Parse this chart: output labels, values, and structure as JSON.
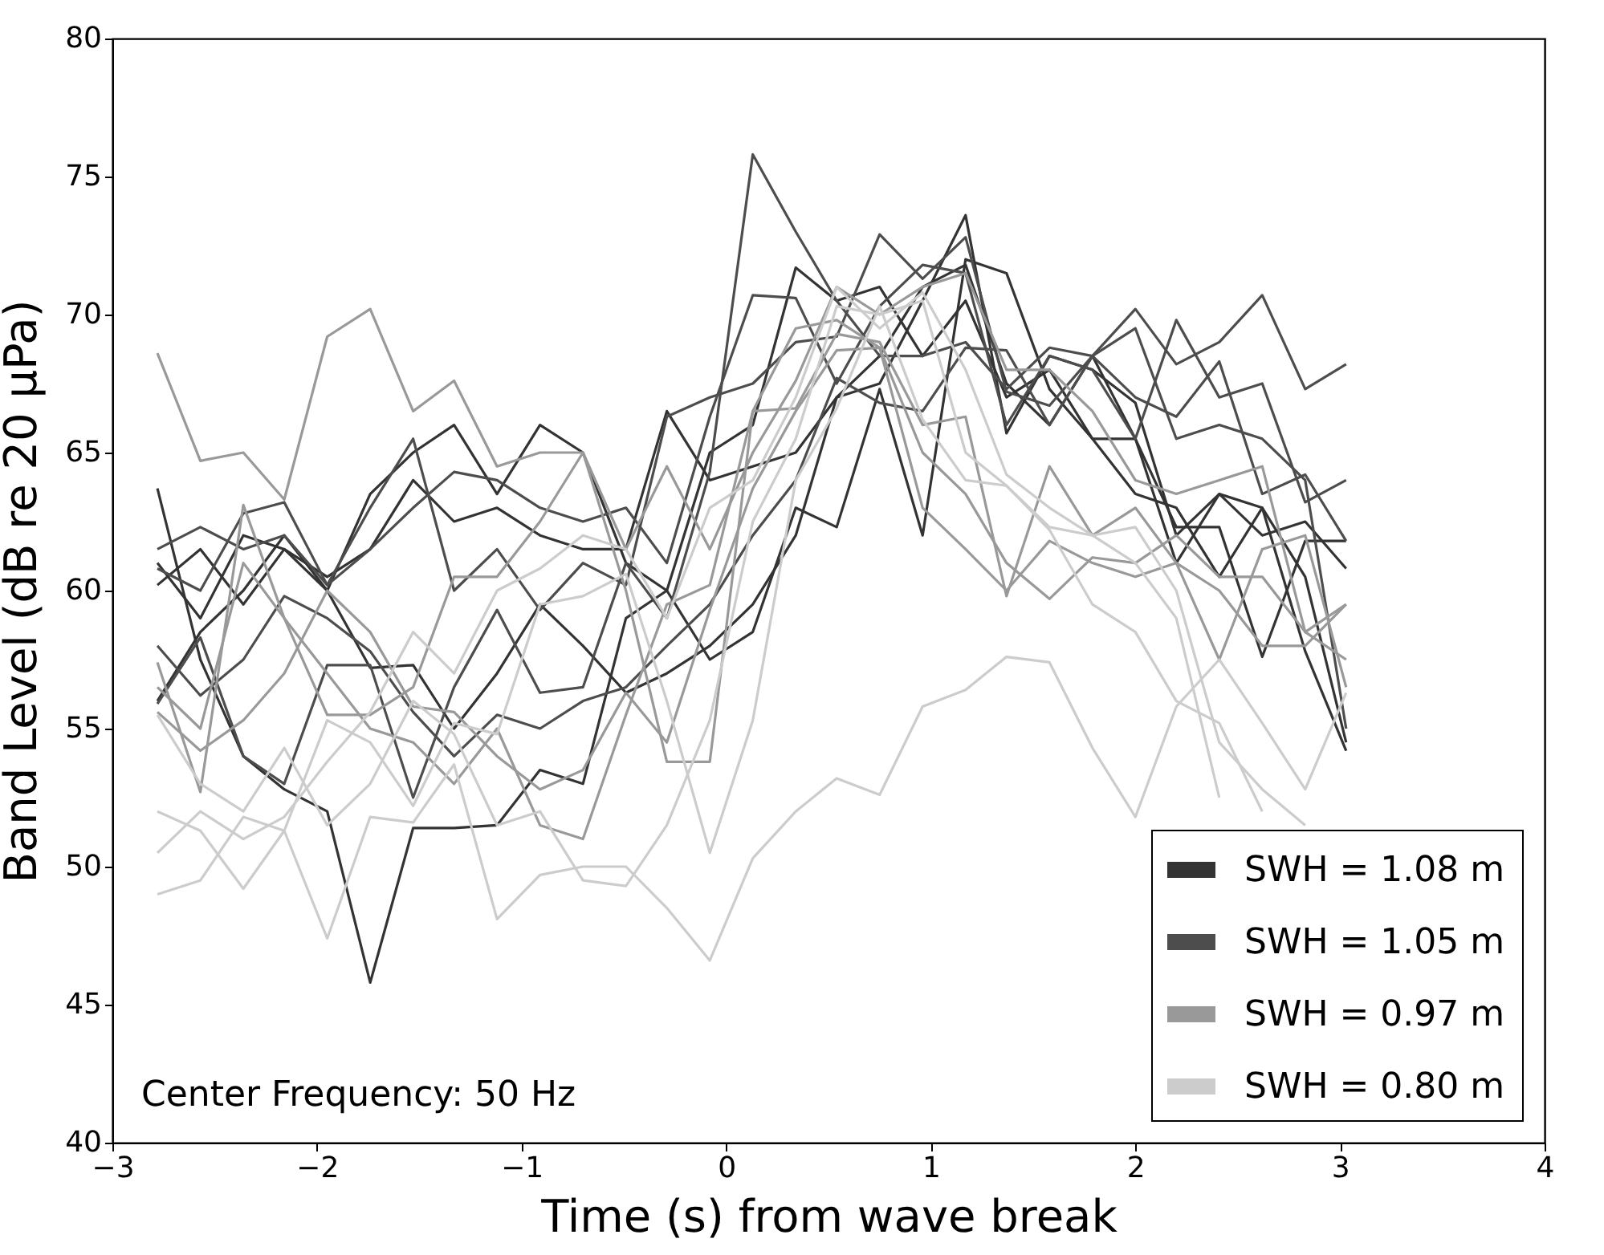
{
  "chart_data": {
    "type": "line",
    "xlabel": "Time (s) from wave break",
    "ylabel": "Band Level (dB re 20 μPa)",
    "annotations": [
      "Center Frequency: 50 Hz"
    ],
    "x": [
      -2.78,
      -2.57,
      -2.36,
      -2.16,
      -1.95,
      -1.74,
      -1.53,
      -1.33,
      -1.12,
      -0.91,
      -0.7,
      -0.49,
      -0.29,
      -0.08,
      0.13,
      0.34,
      0.54,
      0.75,
      0.96,
      1.17,
      1.37,
      1.58,
      1.79,
      2.0,
      2.2,
      2.41,
      2.62,
      2.83,
      3.03
    ],
    "xlim": [
      -3,
      4
    ],
    "xticks": [
      {
        "value": -3,
        "label": "−3"
      },
      {
        "value": -2,
        "label": "−2"
      },
      {
        "value": -1,
        "label": "−1"
      },
      0,
      1,
      2,
      3,
      4
    ],
    "ylim": [
      40,
      80
    ],
    "yticks": [
      40,
      45,
      50,
      55,
      60,
      65,
      70,
      75,
      80
    ],
    "legend": "bottom right",
    "line_style": "solid",
    "series": [
      {
        "name": "SWH = 1.08 m",
        "color": "#333333",
        "values": [
          56,
          58.5,
          60,
          62,
          60,
          57.2,
          57.3,
          55,
          57,
          59.5,
          58,
          56.3,
          57,
          58,
          59.5,
          62,
          67,
          68.5,
          71,
          71.8,
          67.5,
          66,
          68.5,
          65.5,
          61,
          63.5,
          63,
          57.8,
          54.2
        ]
      },
      {
        "color": "#333333",
        "values": [
          61,
          59,
          62,
          61.5,
          60,
          63.5,
          65,
          66,
          63.5,
          66,
          65,
          61,
          60,
          65,
          66,
          71.7,
          70.5,
          71,
          68.5,
          70.5,
          67,
          68,
          65.5,
          63.5,
          63,
          60.5,
          63,
          60.5,
          54.5
        ]
      },
      {
        "color": "#333333",
        "values": [
          60.2,
          61.5,
          59.5,
          61.5,
          60.5,
          61.5,
          64,
          62.5,
          63,
          62,
          61.5,
          61.5,
          66.5,
          64,
          64.5,
          65,
          67,
          67.5,
          70.5,
          73.6,
          65.7,
          68.5,
          68,
          66.8,
          62,
          63.5,
          62,
          62.5,
          60.8
        ]
      },
      {
        "color": "#333333",
        "values": [
          63.7,
          57.5,
          54,
          52.8,
          52,
          45.8,
          51.4,
          51.4,
          51.5,
          53.5,
          53,
          59,
          60,
          57.5,
          58.5,
          63,
          62.3,
          67.3,
          62,
          72,
          71.5,
          67.3,
          65.5,
          65.5,
          62.3,
          62.3,
          57.6,
          61.8,
          61.8
        ]
      },
      {
        "name": "SWH = 1.05 m",
        "color": "#4d4d4d",
        "values": [
          55.9,
          58.3,
          54,
          53,
          57.3,
          57.3,
          52.5,
          56.5,
          59.3,
          56.3,
          56.5,
          61,
          59,
          64.3,
          75.8,
          73,
          70.5,
          68.5,
          68.5,
          69,
          67.3,
          68.8,
          68.5,
          70.2,
          68.2,
          69,
          70.7,
          67.3,
          68.2
        ]
      },
      {
        "color": "#4d4d4d",
        "values": [
          60.8,
          60,
          62.8,
          63.2,
          60.2,
          61.5,
          63,
          64.3,
          64,
          63,
          62.5,
          63,
          61,
          66.3,
          70.7,
          70.6,
          67.5,
          70.3,
          71.8,
          71.5,
          66,
          68.5,
          68,
          65.5,
          69.8,
          67,
          67.5,
          63.2,
          64
        ]
      },
      {
        "color": "#4d4d4d",
        "values": [
          61.5,
          62.3,
          61.5,
          62,
          60.2,
          63,
          65.5,
          60,
          61.5,
          59.3,
          61,
          60.2,
          66.3,
          67,
          67.5,
          69,
          69.2,
          72.9,
          71.3,
          72.8,
          67.2,
          66.7,
          68.5,
          67,
          66.3,
          68.3,
          63.5,
          64.2,
          61.8
        ]
      },
      {
        "color": "#4d4d4d",
        "values": [
          58,
          56.2,
          57.5,
          59.8,
          59,
          57.8,
          55.6,
          54,
          55.5,
          55,
          56,
          56.5,
          58,
          59.5,
          62,
          64,
          67.7,
          66.8,
          66.5,
          68.8,
          68.7,
          66,
          68.5,
          69.5,
          65.5,
          66,
          65.5,
          64,
          55
        ]
      },
      {
        "name": "SWH = 0.97 m",
        "color": "#999999",
        "values": [
          68.6,
          64.7,
          65,
          63.3,
          69.2,
          70.2,
          66.5,
          67.6,
          64.5,
          65,
          65,
          61.5,
          64.5,
          61.5,
          65,
          67.6,
          71,
          70,
          71,
          71.5,
          68,
          68,
          66.5,
          64,
          63.5,
          64,
          64.5,
          58.5,
          59.5
        ]
      },
      {
        "color": "#999999",
        "values": [
          57.4,
          52.7,
          63.1,
          59,
          55.5,
          55.5,
          56.5,
          60.5,
          60.5,
          62.5,
          65,
          60,
          53.8,
          53.8,
          66.5,
          66.6,
          69.3,
          69,
          66,
          66.3,
          59.8,
          64.5,
          62,
          63,
          61,
          57.5,
          61.5,
          62,
          56.5
        ]
      },
      {
        "color": "#999999",
        "values": [
          55.6,
          54.2,
          55.3,
          57,
          60,
          58.5,
          55.8,
          55.6,
          54,
          52.8,
          53.5,
          56.3,
          54.5,
          59.3,
          63.7,
          66.5,
          68.7,
          68.8,
          65,
          63.5,
          61,
          59.7,
          61.2,
          61,
          62,
          60.5,
          60.5,
          58.5,
          57.5
        ]
      },
      {
        "color": "#999999",
        "values": [
          56.5,
          55,
          61,
          59,
          57,
          55,
          54.5,
          53,
          55,
          51.5,
          51,
          55.5,
          59.5,
          60.2,
          66.5,
          69.5,
          69.8,
          68.8,
          63,
          61.5,
          60,
          61.8,
          61,
          60.5,
          61,
          60,
          58,
          58,
          59.5
        ]
      },
      {
        "name": "SWH = 0.80 m",
        "color": "#cccccc",
        "values": [
          49,
          49.5,
          51.8,
          51.3,
          47.4,
          51.8,
          51.6,
          53.7,
          48.1,
          49.7,
          50,
          50,
          48.5,
          46.6,
          50.3,
          52,
          53.2,
          52.6,
          55.8,
          56.4,
          57.6,
          57.4,
          54.3,
          51.8,
          55.8,
          57.5,
          55.2,
          52.8,
          56.3
        ]
      },
      {
        "color": "#cccccc",
        "values": [
          52,
          51.3,
          49.2,
          51.3,
          55.3,
          54.5,
          52.2,
          55.2,
          54.8,
          59.5,
          59.8,
          60.6,
          56,
          50.5,
          55.3,
          64,
          66.6,
          70.3,
          66.2,
          64,
          63.8,
          62.3,
          62,
          61,
          59,
          52.5,
          null,
          null,
          null
        ]
      },
      {
        "color": "#cccccc",
        "values": [
          50.5,
          52,
          51,
          51.8,
          53.8,
          55.6,
          58.5,
          57,
          60,
          60.8,
          62,
          61.5,
          59,
          63,
          64,
          67,
          71,
          69.5,
          70.8,
          68,
          64.2,
          63,
          62,
          62.3,
          60,
          54.5,
          52.8,
          51.5,
          null
        ]
      },
      {
        "color": "#cccccc",
        "values": [
          55.5,
          53,
          52,
          54.3,
          51.5,
          53,
          56,
          54.8,
          51.5,
          52,
          49.5,
          49.3,
          51.5,
          55.3,
          62.5,
          65.5,
          70.3,
          70,
          70.5,
          65,
          63.8,
          62.2,
          59.5,
          58.5,
          56,
          55.2,
          52,
          null,
          null
        ]
      }
    ]
  }
}
